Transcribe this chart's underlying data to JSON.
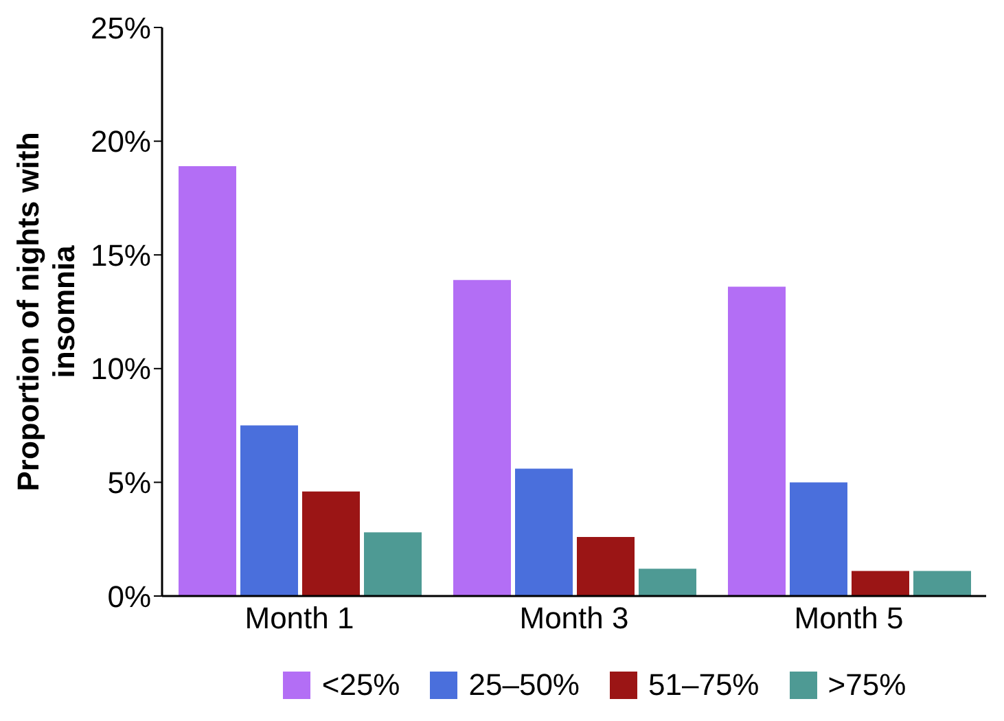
{
  "chart_data": {
    "type": "bar",
    "ylabel": "Proportion of nights with insomnia",
    "categories": [
      "Month 1",
      "Month 3",
      "Month 5"
    ],
    "series": [
      {
        "name": "<25%",
        "color": "#b36ef5",
        "values": [
          18.9,
          13.9,
          13.6
        ]
      },
      {
        "name": "25–50%",
        "color": "#4a6fdc",
        "values": [
          7.5,
          5.6,
          5.0
        ]
      },
      {
        "name": "51–75%",
        "color": "#9b1515",
        "values": [
          4.6,
          2.6,
          1.1
        ]
      },
      {
        "name": ">75%",
        "color": "#4e9a94",
        "values": [
          2.8,
          1.2,
          1.1
        ]
      }
    ],
    "ylim": [
      0,
      25
    ],
    "yticks": [
      {
        "value": 0,
        "label": "0%"
      },
      {
        "value": 5,
        "label": "5%"
      },
      {
        "value": 10,
        "label": "10%"
      },
      {
        "value": 15,
        "label": "15%"
      },
      {
        "value": 20,
        "label": "20%"
      },
      {
        "value": 25,
        "label": "25%"
      }
    ],
    "grid": false,
    "legend": "bottom"
  }
}
